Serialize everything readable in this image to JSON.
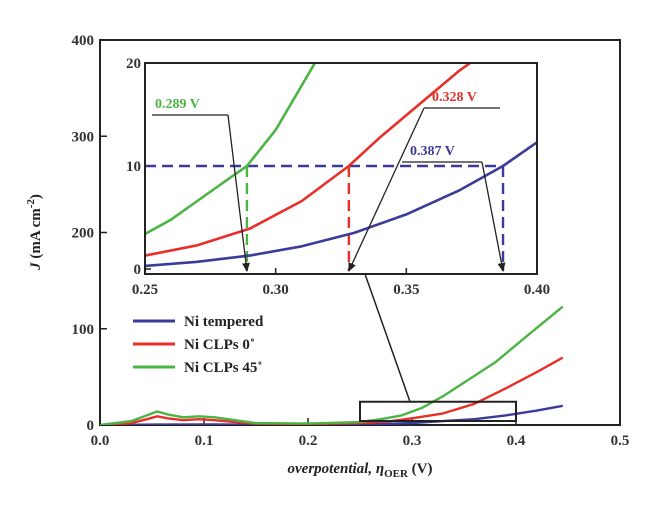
{
  "chart_data": [
    {
      "type": "line",
      "xlabel_italic": "overpotential, η",
      "xlabel_sub": "OER",
      "xlabel_unit": " (V)",
      "ylabel_italic": "J",
      "ylabel_main": " (mA cm",
      "ylabel_sup": "-2",
      "ylabel_end": ")",
      "xlim": [
        0.0,
        0.5
      ],
      "ylim": [
        0,
        400
      ],
      "xticks": [
        "0.0",
        "0.1",
        "0.2",
        "0.3",
        "0.4",
        "0.5"
      ],
      "yticks": [
        "0",
        "100",
        "200",
        "300",
        "400"
      ],
      "grid": false,
      "legend_position": "bottom-left",
      "series": [
        {
          "name": "Ni tempered",
          "color": "#3b3b9a",
          "x": [
            0.0,
            0.05,
            0.1,
            0.15,
            0.2,
            0.25,
            0.3,
            0.33,
            0.36,
            0.39,
            0.42,
            0.445
          ],
          "y": [
            0,
            0.4,
            0.6,
            0.4,
            0.3,
            0.5,
            2,
            4,
            6,
            10,
            15,
            20
          ]
        },
        {
          "name": "Ni CLPs 0˚",
          "color": "#e8302a",
          "x": [
            0.0,
            0.03,
            0.045,
            0.055,
            0.065,
            0.08,
            0.095,
            0.11,
            0.13,
            0.15,
            0.2,
            0.25,
            0.28,
            0.3,
            0.33,
            0.36,
            0.39,
            0.42,
            0.445
          ],
          "y": [
            0,
            2,
            6,
            9,
            7,
            5,
            6,
            5,
            3,
            1.5,
            1,
            2,
            4,
            7,
            12,
            22,
            38,
            55,
            70
          ]
        },
        {
          "name": "Ni CLPs 45˚",
          "color": "#4bb543",
          "x": [
            0.0,
            0.03,
            0.045,
            0.055,
            0.065,
            0.08,
            0.095,
            0.11,
            0.13,
            0.15,
            0.2,
            0.25,
            0.27,
            0.29,
            0.31,
            0.33,
            0.35,
            0.38,
            0.41,
            0.445
          ],
          "y": [
            0,
            4,
            10,
            14,
            11,
            8,
            9,
            8,
            5,
            2,
            1.5,
            3,
            6,
            10,
            18,
            30,
            44,
            65,
            92,
            123
          ]
        }
      ],
      "zoom_box": {
        "x": [
          0.25,
          0.4
        ],
        "y": [
          0,
          20
        ]
      }
    },
    {
      "type": "line",
      "role": "inset",
      "xlim": [
        0.25,
        0.4
      ],
      "ylim": [
        0,
        20
      ],
      "xticks": [
        "0.25",
        "0.30",
        "0.35",
        "0.40"
      ],
      "yticks": [
        "0",
        "10",
        "20"
      ],
      "reference_y": 10,
      "series": [
        {
          "name": "Ni tempered",
          "color": "#3b3b9a",
          "x": [
            0.25,
            0.27,
            0.29,
            0.31,
            0.33,
            0.35,
            0.37,
            0.387,
            0.4
          ],
          "y": [
            0.3,
            0.7,
            1.3,
            2.2,
            3.5,
            5.3,
            7.6,
            10,
            12.3
          ]
        },
        {
          "name": "Ni CLPs 0˚",
          "color": "#e8302a",
          "x": [
            0.25,
            0.27,
            0.29,
            0.31,
            0.328,
            0.34,
            0.355,
            0.37,
            0.38
          ],
          "y": [
            1.3,
            2.3,
            3.9,
            6.6,
            10,
            12.8,
            16.0,
            19.2,
            21
          ]
        },
        {
          "name": "Ni CLPs 45˚",
          "color": "#4bb543",
          "x": [
            0.25,
            0.26,
            0.27,
            0.28,
            0.289,
            0.3,
            0.315
          ],
          "y": [
            3.4,
            4.8,
            6.6,
            8.4,
            10,
            13.5,
            20
          ]
        }
      ],
      "annotations": [
        {
          "label": "0.289 V",
          "x": 0.289,
          "color": "#4bb543"
        },
        {
          "label": "0.328 V",
          "x": 0.328,
          "color": "#e8302a"
        },
        {
          "label": "0.387 V",
          "x": 0.387,
          "color": "#3b3b9a"
        }
      ]
    }
  ]
}
